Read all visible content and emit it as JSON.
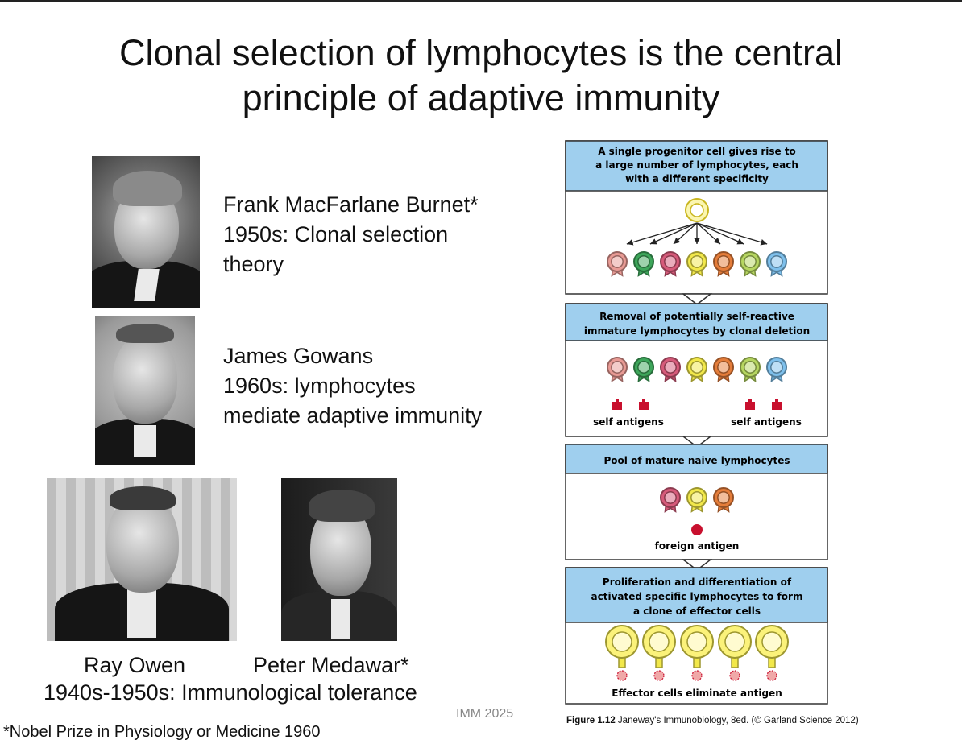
{
  "slide": {
    "title_line1": "Clonal selection of lymphocytes is the central",
    "title_line2": "principle of adaptive immunity",
    "watermark": "IMM 2025",
    "footnote": "*Nobel Prize in Physiology or Medicine 1960"
  },
  "scientists": {
    "burnet": {
      "name": "Frank MacFarlane Burnet*",
      "line2": "1950s: Clonal selection",
      "line3": "theory"
    },
    "gowans": {
      "name": "James Gowans",
      "line2": "1960s: lymphocytes",
      "line3": "mediate adaptive immunity"
    },
    "owen": {
      "name": "Ray Owen"
    },
    "medawar": {
      "name": "Peter Medawar*"
    },
    "tolerance_caption": "1940s-1950s: Immunological tolerance"
  },
  "figure": {
    "panel1_header": [
      "A single progenitor cell gives rise to",
      "a large number of lymphocytes, each",
      "with a different specificity"
    ],
    "panel2_header": [
      "Removal of potentially self-reactive",
      "immature lymphocytes by clonal deletion"
    ],
    "panel2_labels": [
      "self antigens",
      "self antigens"
    ],
    "panel3_header": [
      "Pool of mature naive lymphocytes"
    ],
    "panel3_label": "foreign antigen",
    "panel4_header": [
      "Proliferation and differentiation of",
      "activated specific lymphocytes to form",
      "a clone of effector cells"
    ],
    "panel4_label": "Effector cells eliminate antigen",
    "caption_prefix": "Figure 1.12",
    "caption_source": "Janeway's Immunobiology, 8ed. (© Garland Science 2012)",
    "colors": {
      "header_fill": "#9fcfee",
      "lymphocyte_colors": [
        "#e89a94",
        "#3da65a",
        "#d65a7a",
        "#f2e84a",
        "#e57d3a",
        "#b6d660",
        "#7ec0ec"
      ],
      "antigen": "#c8102e"
    }
  }
}
